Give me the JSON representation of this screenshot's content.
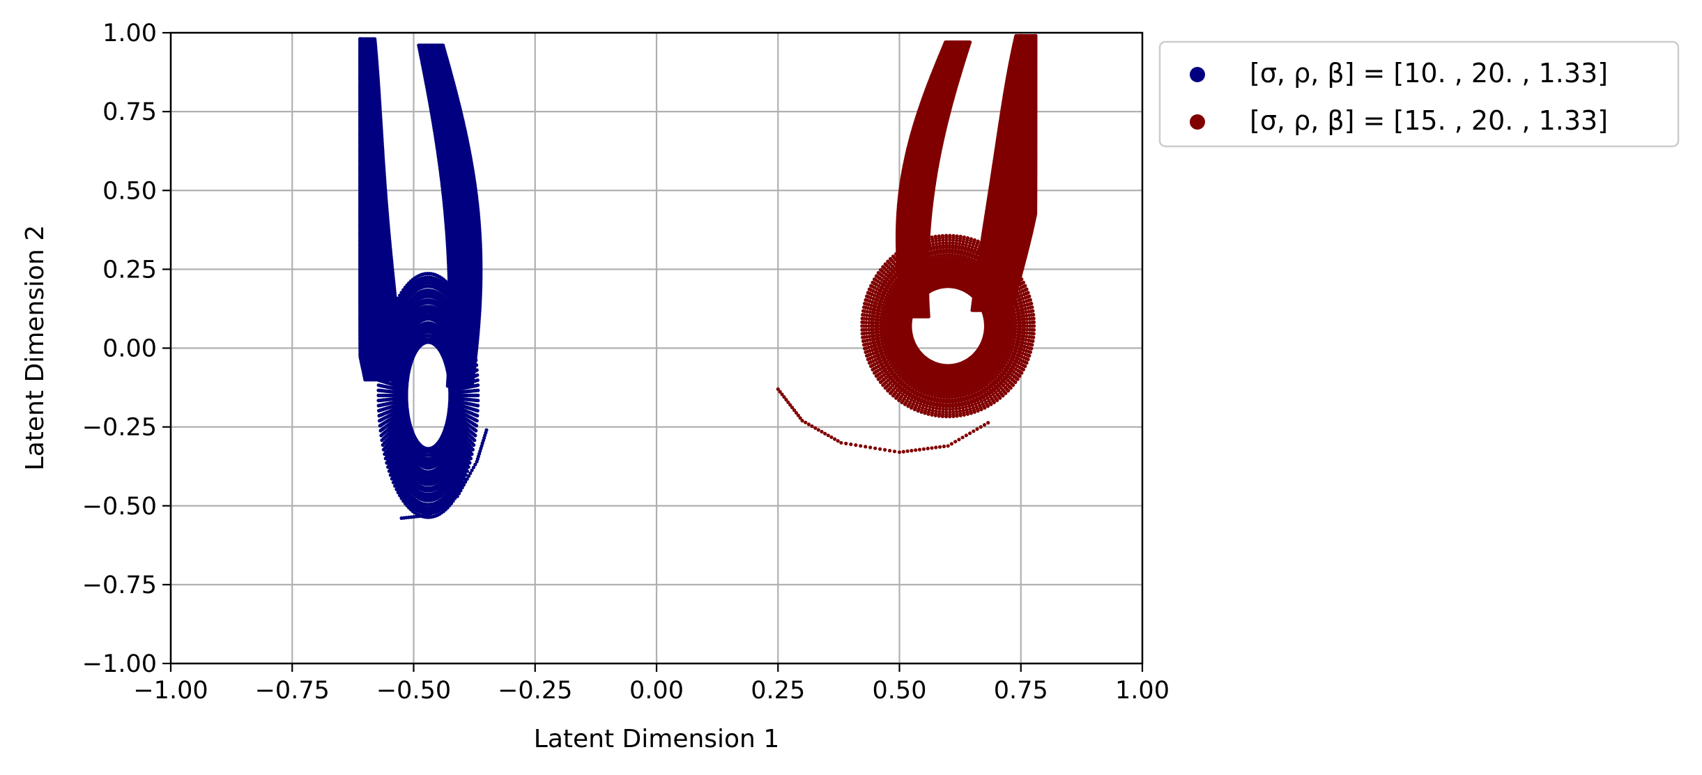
{
  "chart_data": {
    "type": "scatter",
    "title": "",
    "xlabel": "Latent Dimension 1",
    "ylabel": "Latent Dimension 2",
    "xlim": [
      -1.0,
      1.0
    ],
    "ylim": [
      -1.0,
      1.0
    ],
    "xticks": [
      "−1.00",
      "−0.75",
      "−0.50",
      "−0.25",
      "0.00",
      "0.25",
      "0.50",
      "0.75",
      "1.00"
    ],
    "yticks": [
      "1.00",
      "0.75",
      "0.50",
      "0.25",
      "0.00",
      "−0.25",
      "−0.50",
      "−0.75",
      "−1.00"
    ],
    "grid": true,
    "legend_placement": "outside-upper-right",
    "series": [
      {
        "name": "[σ, ρ, β] = [10.  , 20.  ,  1.33]",
        "color": "#000080",
        "attractor": {
          "top": [
            -0.54,
            0.98
          ],
          "lobe_center": [
            -0.47,
            -0.15
          ],
          "x_range": [
            -0.61,
            -0.35
          ],
          "y_range": [
            -0.54,
            0.98
          ],
          "mirror": false
        },
        "tail": [
          [
            -0.35,
            -0.26
          ],
          [
            -0.37,
            -0.36
          ],
          [
            -0.41,
            -0.47
          ],
          [
            -0.47,
            -0.53
          ],
          [
            -0.53,
            -0.54
          ]
        ]
      },
      {
        "name": "[σ, ρ, β] = [15.  , 20.  ,  1.33]",
        "color": "#800000",
        "attractor": {
          "top": [
            0.7,
            0.99
          ],
          "lobe_center": [
            0.6,
            0.07
          ],
          "x_range": [
            0.33,
            0.78
          ],
          "y_range": [
            -0.22,
            0.99
          ],
          "mirror": true
        },
        "tail": [
          [
            0.25,
            -0.13
          ],
          [
            0.3,
            -0.23
          ],
          [
            0.38,
            -0.3
          ],
          [
            0.5,
            -0.33
          ],
          [
            0.6,
            -0.31
          ],
          [
            0.69,
            -0.23
          ]
        ]
      }
    ]
  }
}
